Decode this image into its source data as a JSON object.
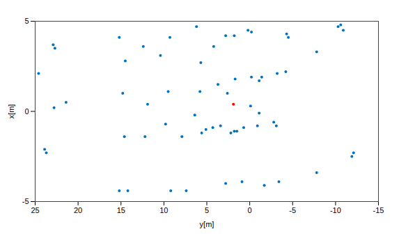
{
  "chart_data": {
    "type": "scatter",
    "xlabel": "x[m]",
    "ylabel": "y[m]",
    "xlim": [
      -5,
      5
    ],
    "ylim": [
      -15,
      25
    ],
    "xticks": [
      -5,
      0,
      5
    ],
    "yticks": [
      -15,
      -10,
      -5,
      0,
      5,
      10,
      15,
      20,
      25
    ],
    "grid": false,
    "series": [
      {
        "color": "#0072bd",
        "marker": "circle",
        "x": [
          -2.3,
          -2.1,
          0.2,
          2.1,
          0.5,
          3.5,
          3.7,
          -4.4,
          -4.4,
          -1.4,
          1.0,
          2.8,
          4.1,
          -4.4,
          -4.4,
          -1.4,
          0.4,
          -0.7,
          1.1,
          3.6,
          3.1,
          4.1,
          -1.4,
          -0.2,
          1.1,
          2.7,
          4.7,
          -1.2,
          -1.0,
          -0.9,
          -0.8,
          -1.2,
          -1.1,
          -0.9,
          -0.8,
          1.5,
          1.0,
          0.3,
          -0.1,
          3.6,
          4.2,
          4.2,
          4.4,
          4.5,
          1.7,
          1.9,
          -0.8,
          -0.6,
          2.1,
          2.2,
          4.3,
          4.1,
          3.3,
          4.8,
          4.5,
          4.7,
          -4.0,
          -3.9,
          -4.1,
          -3.9,
          -3.4,
          -2.5,
          -2.3,
          -1.1,
          1.9,
          1.8
        ],
        "y": [
          23.7,
          23.9,
          22.8,
          24.6,
          21.4,
          22.7,
          22.9,
          15.2,
          14.2,
          14.6,
          14.8,
          14.5,
          15.2,
          9.2,
          7.4,
          12.2,
          11.9,
          9.8,
          9.5,
          12.4,
          10.4,
          9.3,
          7.9,
          6.4,
          5.8,
          5.7,
          6.2,
          5.6,
          5.1,
          4.3,
          3.4,
          2.2,
          1.5,
          0.7,
          -0.9,
          3.7,
          2.6,
          -0.1,
          -1.1,
          4.2,
          2.8,
          1.8,
          -0.2,
          0.2,
          -1.1,
          -1.4,
          -3.1,
          -2.8,
          -3.2,
          -4.2,
          -4.3,
          -4.5,
          -7.8,
          -10.6,
          -10.9,
          -10.3,
          2.8,
          0.9,
          -1.7,
          -3.4,
          -7.8,
          -11.9,
          -12.1,
          1.8,
          -0.2,
          1.7
        ]
      },
      {
        "color": "#ff0000",
        "marker": "circle",
        "x": [
          0.4
        ],
        "y": [
          1.9
        ]
      }
    ]
  }
}
